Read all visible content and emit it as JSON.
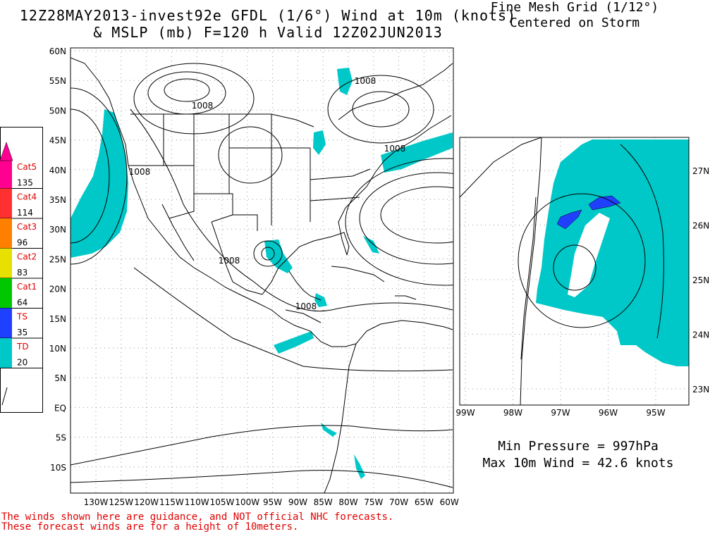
{
  "header": {
    "line1": "12Z28MAY2013-invest92e GFDL (1/6°) Wind at 10m (knots)",
    "line2": "& MSLP (mb) F=120 h Valid 12Z02JUN2013"
  },
  "main_map": {
    "lat_labels": [
      "60N",
      "55N",
      "50N",
      "45N",
      "40N",
      "35N",
      "30N",
      "25N",
      "20N",
      "15N",
      "10N",
      "5N",
      "EQ",
      "5S",
      "10S"
    ],
    "lon_labels": [
      "130W",
      "125W",
      "120W",
      "115W",
      "110W",
      "105W",
      "100W",
      "95W",
      "90W",
      "85W",
      "80W",
      "75W",
      "70W",
      "65W",
      "60W"
    ],
    "isobar_labels": [
      "1008",
      "1008",
      "1008",
      "1008",
      "1008"
    ],
    "wind_fill_color": "#00c8c8"
  },
  "legend": {
    "items": [
      {
        "label": "Cat5",
        "threshold": "135",
        "color": "#ff0090"
      },
      {
        "label": "Cat4",
        "threshold": "114",
        "color": "#ff3030"
      },
      {
        "label": "Cat3",
        "threshold": "96",
        "color": "#ff8000"
      },
      {
        "label": "Cat2",
        "threshold": "83",
        "color": "#e8e000"
      },
      {
        "label": "Cat1",
        "threshold": "64",
        "color": "#00c800"
      },
      {
        "label": "TS",
        "threshold": "35",
        "color": "#2040ff"
      },
      {
        "label": "TD",
        "threshold": "20",
        "color": "#00c8c8"
      }
    ]
  },
  "inset": {
    "title_line1": "Fine Mesh Grid (1/12°)",
    "title_line2": "Centered on Storm",
    "lat_labels": [
      "27N",
      "26N",
      "25N",
      "24N",
      "23N"
    ],
    "lon_labels": [
      "99W",
      "98W",
      "97W",
      "96W",
      "95W"
    ]
  },
  "stats": {
    "min_pressure": "Min Pressure = 997hPa",
    "max_wind": "Max 10m Wind = 42.6 knots"
  },
  "disclaimer": {
    "line1": "The winds shown here are guidance, and NOT official NHC forecasts.",
    "line2": "These forecast winds are for a height of 10meters."
  }
}
